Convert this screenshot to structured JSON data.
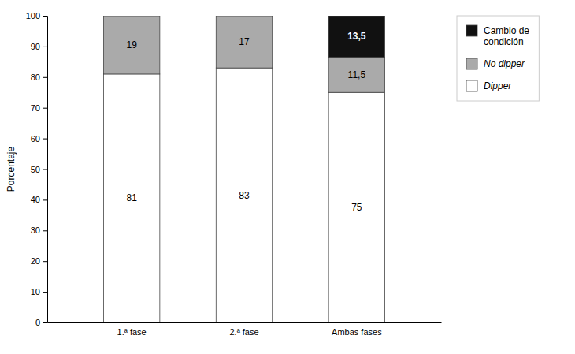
{
  "chart_data": {
    "type": "bar",
    "stacked": true,
    "data_labels": true,
    "grid": false,
    "legend": "right",
    "y_label": "Porcentaje",
    "categories": [
      "1.ª fase",
      "2.ª fase",
      "Ambas fases"
    ],
    "series": [
      {
        "name": "Dipper",
        "color": "#ffffff",
        "values": [
          81,
          83,
          75
        ]
      },
      {
        "name": "No dipper",
        "color": "#aaaaaa",
        "values": [
          19,
          17,
          11.5
        ],
        "value_labels": [
          "19",
          "17",
          "11,5"
        ]
      },
      {
        "name": "Cambio de\ncondición",
        "color": "#111111",
        "values": [
          0,
          0,
          13.5
        ],
        "value_labels": [
          null,
          null,
          "13,5"
        ]
      }
    ],
    "ylim": [
      0,
      100
    ],
    "yticks": [
      0,
      10,
      20,
      30,
      40,
      50,
      60,
      70,
      80,
      90,
      100
    ]
  }
}
